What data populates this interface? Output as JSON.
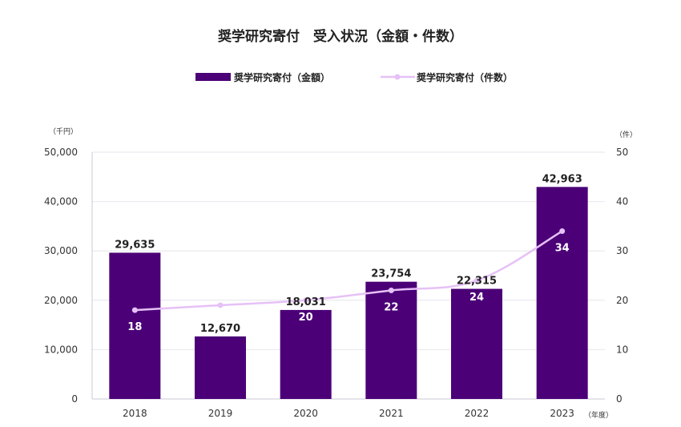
{
  "chart_data": {
    "type": "bar",
    "title": "奨学研究寄付　受入状況（金額・件数）",
    "categories": [
      "2018",
      "2019",
      "2020",
      "2021",
      "2022",
      "2023"
    ],
    "series": [
      {
        "name": "奨学研究寄付（金額）",
        "type": "bar",
        "axis": "left",
        "values": [
          29635,
          12670,
          18031,
          23754,
          22315,
          42963
        ],
        "labels": [
          "29,635",
          "12,670",
          "18,031",
          "23,754",
          "22,315",
          "42,963"
        ]
      },
      {
        "name": "奨学研究寄付（件数）",
        "type": "line",
        "axis": "right",
        "values": [
          18,
          19,
          20,
          22,
          24,
          34
        ],
        "labels": [
          "18",
          "",
          "20",
          "22",
          "24",
          "34"
        ]
      }
    ],
    "y_left": {
      "unit": "（千円）",
      "ylim": [
        0,
        50000
      ],
      "ticks": [
        "0",
        "10,000",
        "20,000",
        "30,000",
        "40,000",
        "50,000"
      ]
    },
    "y_right": {
      "unit": "（件）",
      "ylim": [
        0,
        50
      ],
      "ticks": [
        "0",
        "10",
        "20",
        "30",
        "40",
        "50"
      ]
    },
    "x_unit": "（年度）",
    "legend_position": "top-center",
    "grid": true,
    "colors": {
      "bar": "#4b0077",
      "line": "#e6c1f7",
      "grid": "#e6e6ee",
      "axis": "#c9c9d6"
    }
  }
}
